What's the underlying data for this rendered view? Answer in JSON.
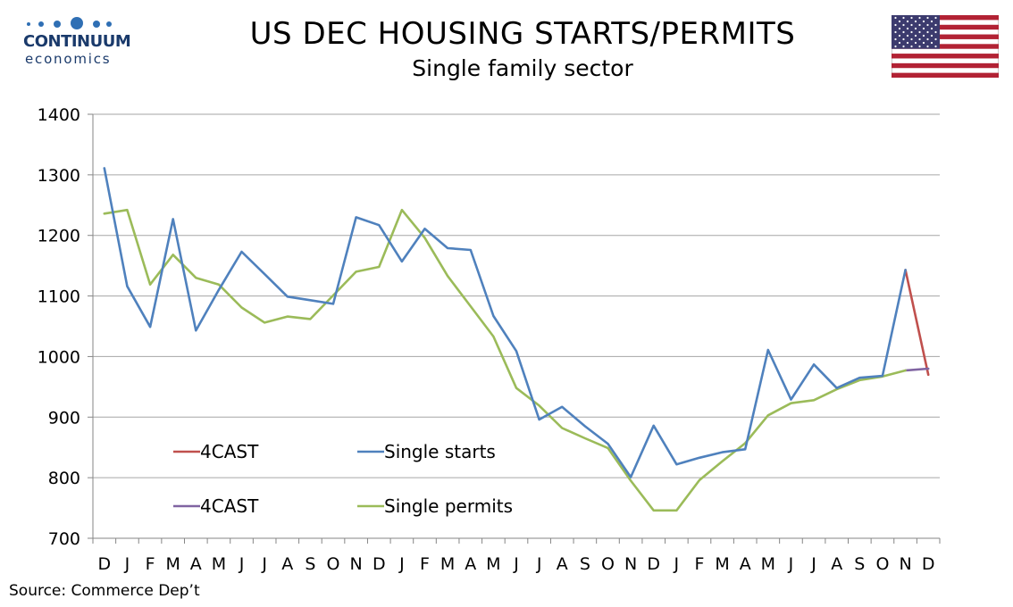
{
  "branding": {
    "logo_word": "CONTINUUM",
    "logo_sub": "economics",
    "flag_icon": "us-flag-icon"
  },
  "header": {
    "title": "US DEC HOUSING STARTS/PERMITS",
    "subtitle": "Single family sector"
  },
  "footer": {
    "source": "Source: Commerce Dep’t"
  },
  "chart_data": {
    "type": "line",
    "title": "US DEC HOUSING STARTS/PERMITS",
    "subtitle": "Single family sector",
    "ylim": [
      700,
      1400
    ],
    "yticks": [
      700,
      800,
      900,
      1000,
      1100,
      1200,
      1300,
      1400
    ],
    "grid": true,
    "legend_placement": "bottom-left",
    "categories": [
      "D",
      "J",
      "F",
      "M",
      "A",
      "M",
      "J",
      "J",
      "A",
      "S",
      "O",
      "N",
      "D",
      "J",
      "F",
      "M",
      "A",
      "M",
      "J",
      "J",
      "A",
      "S",
      "O",
      "N",
      "D",
      "J",
      "F",
      "M",
      "A",
      "M",
      "J",
      "J",
      "A",
      "S",
      "O",
      "N",
      "D"
    ],
    "series": [
      {
        "name": "4CAST",
        "color": "#c0504d",
        "values": [
          null,
          null,
          null,
          null,
          null,
          null,
          null,
          null,
          null,
          null,
          null,
          null,
          null,
          null,
          null,
          null,
          null,
          null,
          null,
          null,
          null,
          null,
          null,
          null,
          null,
          null,
          null,
          null,
          null,
          null,
          null,
          null,
          null,
          null,
          null,
          1143,
          970
        ]
      },
      {
        "name": "Single starts",
        "color": "#4f81bd",
        "values": [
          1311,
          1116,
          1049,
          1227,
          1043,
          1110,
          1173,
          1136,
          1099,
          1093,
          1087,
          1230,
          1217,
          1157,
          1211,
          1179,
          1176,
          1067,
          1009,
          896,
          917,
          885,
          856,
          801,
          886,
          822,
          833,
          842,
          847,
          1011,
          929,
          987,
          948,
          965,
          968,
          1143,
          null
        ]
      },
      {
        "name": "4CAST",
        "color": "#8064a2",
        "values": [
          null,
          null,
          null,
          null,
          null,
          null,
          null,
          null,
          null,
          null,
          null,
          null,
          null,
          null,
          null,
          null,
          null,
          null,
          null,
          null,
          null,
          null,
          null,
          null,
          null,
          null,
          null,
          null,
          null,
          null,
          null,
          null,
          null,
          null,
          null,
          977,
          980
        ]
      },
      {
        "name": "Single permits",
        "color": "#9bbb59",
        "values": [
          1236,
          1242,
          1119,
          1168,
          1130,
          1119,
          1081,
          1056,
          1066,
          1062,
          1101,
          1140,
          1148,
          1242,
          1196,
          1133,
          1083,
          1033,
          948,
          919,
          882,
          865,
          849,
          795,
          746,
          746,
          796,
          827,
          857,
          903,
          923,
          928,
          946,
          961,
          967,
          977,
          null
        ]
      }
    ]
  }
}
